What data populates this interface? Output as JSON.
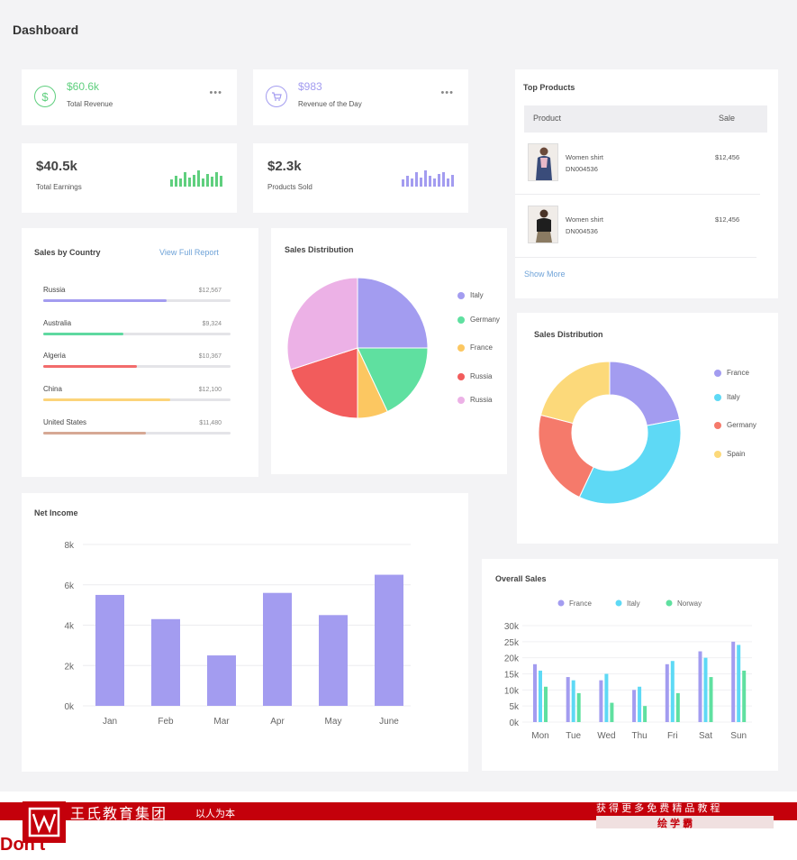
{
  "page_title": "Dashboard",
  "stats": [
    {
      "value": "$60.6k",
      "label": "Total Revenue",
      "icon": "dollar-icon",
      "color": "#5fcf7e"
    },
    {
      "value": "$983",
      "label": "Revenue of the Day",
      "icon": "cart-icon",
      "color": "#a39cf0"
    }
  ],
  "dots_label": "•••",
  "big_stats": [
    {
      "value": "$40.5k",
      "label": "Total Earnings",
      "color": "#5fcf7e",
      "spark": [
        8,
        12,
        9,
        16,
        10,
        13,
        18,
        9,
        14,
        11,
        16,
        12
      ]
    },
    {
      "value": "$2.3k",
      "label": "Products Sold",
      "color": "#a39cf0",
      "spark": [
        8,
        12,
        9,
        16,
        10,
        18,
        12,
        9,
        14,
        16,
        9,
        13
      ]
    }
  ],
  "top_products": {
    "title": "Top Products",
    "col_product": "Product",
    "col_sale": "Sale",
    "items": [
      {
        "name": "Women shirt",
        "code": "DN004536",
        "price": "$12,456"
      },
      {
        "name": "Women shirt",
        "code": "DN004536",
        "price": "$12,456"
      }
    ],
    "show_more": "Show More"
  },
  "sales_by_country": {
    "title": "Sales by Country",
    "link": "View Full Report",
    "rows": [
      {
        "name": "Russia",
        "value": "$12,567",
        "pct": 0.66,
        "color": "#a39cf0"
      },
      {
        "name": "Australia",
        "value": "$9,324",
        "pct": 0.43,
        "color": "#5fd9a0"
      },
      {
        "name": "Algeria",
        "value": "$10,367",
        "pct": 0.5,
        "color": "#f26b6b"
      },
      {
        "name": "China",
        "value": "$12,100",
        "pct": 0.68,
        "color": "#fcd47a"
      },
      {
        "name": "United States",
        "value": "$11,480",
        "pct": 0.55,
        "color": "#d6a894"
      }
    ]
  },
  "sales_distribution_pie": {
    "title": "Sales Distribution",
    "legend": [
      {
        "name": "Italy",
        "color": "#a39cf0"
      },
      {
        "name": "Germany",
        "color": "#5fe0a0"
      },
      {
        "name": "France",
        "color": "#fcc761"
      },
      {
        "name": "Russia",
        "color": "#f25c5c"
      },
      {
        "name": "Russia",
        "color": "#ecb1e6"
      }
    ]
  },
  "sales_distribution_donut": {
    "title": "Sales Distribution",
    "legend": [
      {
        "name": "France",
        "color": "#a39cf0"
      },
      {
        "name": "Italy",
        "color": "#5ed9f5"
      },
      {
        "name": "Germany",
        "color": "#f57a6b"
      },
      {
        "name": "Spain",
        "color": "#fcd97a"
      }
    ]
  },
  "net_income": {
    "title": "Net Income"
  },
  "overall_sales": {
    "title": "Overall Sales"
  },
  "chart_data": [
    {
      "type": "pie",
      "title": "Sales Distribution",
      "categories": [
        "Italy",
        "Germany",
        "France",
        "Russia",
        "Russia"
      ],
      "values": [
        25,
        18,
        7,
        20,
        30
      ],
      "colors": [
        "#a39cf0",
        "#5fe0a0",
        "#fcc761",
        "#f25c5c",
        "#ecb1e6"
      ]
    },
    {
      "type": "pie",
      "title": "Sales Distribution",
      "categories": [
        "France",
        "Italy",
        "Germany",
        "Spain"
      ],
      "values": [
        22,
        35,
        22,
        21
      ],
      "colors": [
        "#a39cf0",
        "#5ed9f5",
        "#f57a6b",
        "#fcd97a"
      ]
    },
    {
      "type": "bar",
      "title": "Net Income",
      "categories": [
        "Jan",
        "Feb",
        "Mar",
        "Apr",
        "May",
        "June"
      ],
      "values": [
        5500,
        4300,
        2500,
        5600,
        4500,
        6500
      ],
      "ylim": [
        0,
        8000
      ],
      "yticks": [
        "0k",
        "2k",
        "4k",
        "6k",
        "8k"
      ],
      "color": "#a39cf0"
    },
    {
      "type": "bar",
      "title": "Overall Sales",
      "categories": [
        "Mon",
        "Tue",
        "Wed",
        "Thu",
        "Fri",
        "Sat",
        "Sun"
      ],
      "series": [
        {
          "name": "France",
          "values": [
            18,
            14,
            13,
            10,
            18,
            22,
            25
          ],
          "color": "#a39cf0"
        },
        {
          "name": "Italy",
          "values": [
            16,
            13,
            15,
            11,
            19,
            20,
            24
          ],
          "color": "#5ed9f5"
        },
        {
          "name": "Norway",
          "values": [
            11,
            9,
            6,
            5,
            9,
            14,
            16
          ],
          "color": "#5fe0a0"
        }
      ],
      "ylim": [
        0,
        30
      ],
      "yticks": [
        "0k",
        "5k",
        "10k",
        "15k",
        "20k",
        "25k",
        "30k"
      ],
      "legend": "top-center"
    }
  ],
  "footer": {
    "brand": "王氏教育集团",
    "slogan": "以人为本",
    "right_line1": "获 得 更 多 免 费 精 品 教 程",
    "right_line2": "绘 学 霸",
    "logo_text": "Don't"
  }
}
